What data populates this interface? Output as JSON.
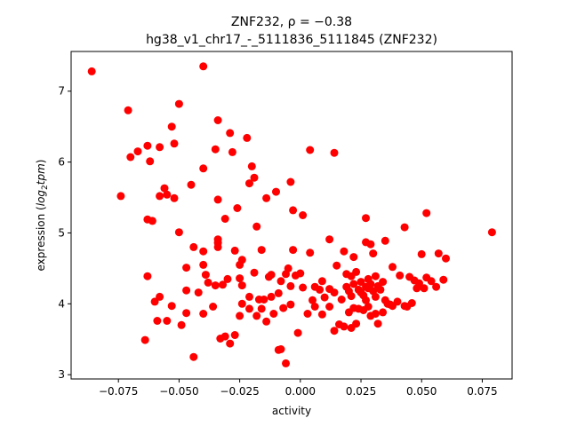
{
  "chart_data": {
    "type": "scatter",
    "title_line1": "ZNF232, ρ = −0.38",
    "title_line2": "hg38_v1_chr17_-_5111836_5111845 (ZNF232)",
    "xlabel": "activity",
    "ylabel_prefix": "expression (",
    "ylabel_math": "log",
    "ylabel_sub": "2",
    "ylabel_math2": "tpm",
    "ylabel_suffix": ")",
    "xlim": [
      -0.0945,
      0.0873
    ],
    "ylim": [
      2.94,
      7.56
    ],
    "grid": false,
    "point_color": "#ff0000",
    "x_ticks": [
      -0.075,
      -0.05,
      -0.025,
      0.0,
      0.025,
      0.05,
      0.075
    ],
    "x_tick_labels": [
      "−0.075",
      "−0.050",
      "−0.025",
      "0.000",
      "0.025",
      "0.050",
      "0.075"
    ],
    "y_ticks": [
      3,
      4,
      5,
      6,
      7
    ],
    "y_tick_labels": [
      "3",
      "4",
      "5",
      "6",
      "7"
    ],
    "points": [
      [
        -0.086,
        7.28
      ],
      [
        -0.04,
        7.35
      ],
      [
        -0.071,
        6.73
      ],
      [
        -0.05,
        6.82
      ],
      [
        -0.034,
        6.59
      ],
      [
        -0.053,
        6.5
      ],
      [
        -0.029,
        6.41
      ],
      [
        -0.022,
        6.34
      ],
      [
        -0.07,
        6.07
      ],
      [
        -0.067,
        6.15
      ],
      [
        -0.063,
        6.23
      ],
      [
        -0.058,
        6.21
      ],
      [
        -0.052,
        6.26
      ],
      [
        -0.062,
        6.01
      ],
      [
        -0.035,
        6.18
      ],
      [
        -0.028,
        6.14
      ],
      [
        0.004,
        6.17
      ],
      [
        0.014,
        6.13
      ],
      [
        -0.04,
        5.91
      ],
      [
        -0.02,
        5.94
      ],
      [
        -0.019,
        5.78
      ],
      [
        -0.074,
        5.52
      ],
      [
        -0.058,
        5.52
      ],
      [
        -0.056,
        5.63
      ],
      [
        -0.052,
        5.49
      ],
      [
        -0.045,
        5.68
      ],
      [
        -0.021,
        5.7
      ],
      [
        -0.014,
        5.49
      ],
      [
        -0.01,
        5.58
      ],
      [
        -0.004,
        5.72
      ],
      [
        -0.055,
        5.54
      ],
      [
        -0.034,
        5.47
      ],
      [
        -0.063,
        5.19
      ],
      [
        -0.061,
        5.17
      ],
      [
        -0.05,
        5.01
      ],
      [
        -0.031,
        5.2
      ],
      [
        -0.026,
        5.35
      ],
      [
        -0.018,
        5.09
      ],
      [
        -0.003,
        5.32
      ],
      [
        0.001,
        5.25
      ],
      [
        0.027,
        5.21
      ],
      [
        0.052,
        5.28
      ],
      [
        0.079,
        5.01
      ],
      [
        -0.044,
        4.8
      ],
      [
        -0.04,
        4.74
      ],
      [
        -0.034,
        4.86
      ],
      [
        -0.034,
        4.91
      ],
      [
        -0.034,
        4.8
      ],
      [
        -0.027,
        4.75
      ],
      [
        -0.016,
        4.76
      ],
      [
        -0.003,
        4.76
      ],
      [
        0.004,
        4.72
      ],
      [
        0.012,
        4.91
      ],
      [
        0.018,
        4.74
      ],
      [
        0.022,
        4.66
      ],
      [
        0.027,
        4.87
      ],
      [
        0.029,
        4.84
      ],
      [
        0.03,
        4.71
      ],
      [
        0.035,
        4.89
      ],
      [
        0.043,
        5.08
      ],
      [
        0.05,
        4.7
      ],
      [
        0.057,
        4.71
      ],
      [
        0.06,
        4.64
      ],
      [
        -0.04,
        4.55
      ],
      [
        -0.047,
        4.51
      ],
      [
        -0.063,
        4.39
      ],
      [
        -0.039,
        4.41
      ],
      [
        -0.025,
        4.55
      ],
      [
        -0.024,
        4.62
      ],
      [
        -0.019,
        4.44
      ],
      [
        -0.013,
        4.38
      ],
      [
        -0.012,
        4.41
      ],
      [
        -0.006,
        4.42
      ],
      [
        -0.005,
        4.5
      ],
      [
        0.0,
        4.43
      ],
      [
        0.006,
        4.24
      ],
      [
        0.009,
        4.32
      ],
      [
        0.012,
        4.21
      ],
      [
        0.015,
        4.54
      ],
      [
        0.019,
        4.42
      ],
      [
        0.021,
        4.39
      ],
      [
        0.023,
        4.45
      ],
      [
        0.025,
        4.31
      ],
      [
        0.028,
        4.35
      ],
      [
        0.031,
        4.39
      ],
      [
        0.034,
        4.31
      ],
      [
        0.038,
        4.52
      ],
      [
        0.041,
        4.4
      ],
      [
        0.045,
        4.38
      ],
      [
        0.047,
        4.33
      ],
      [
        0.049,
        4.29
      ],
      [
        0.052,
        4.37
      ],
      [
        0.054,
        4.32
      ],
      [
        0.056,
        4.24
      ],
      [
        0.059,
        4.34
      ],
      [
        -0.06,
        4.03
      ],
      [
        -0.058,
        4.1
      ],
      [
        -0.053,
        3.97
      ],
      [
        -0.047,
        4.19
      ],
      [
        -0.042,
        4.16
      ],
      [
        -0.038,
        4.3
      ],
      [
        -0.035,
        4.26
      ],
      [
        -0.032,
        4.27
      ],
      [
        -0.03,
        4.35
      ],
      [
        -0.025,
        4.36
      ],
      [
        -0.024,
        4.26
      ],
      [
        -0.021,
        4.1
      ],
      [
        -0.017,
        4.06
      ],
      [
        -0.015,
        4.06
      ],
      [
        -0.012,
        4.1
      ],
      [
        -0.009,
        4.15
      ],
      [
        -0.008,
        4.32
      ],
      [
        -0.004,
        4.25
      ],
      [
        -0.002,
        4.4
      ],
      [
        0.001,
        4.23
      ],
      [
        0.005,
        4.05
      ],
      [
        0.008,
        4.2
      ],
      [
        0.01,
        4.09
      ],
      [
        0.014,
        4.16
      ],
      [
        0.017,
        4.06
      ],
      [
        0.019,
        4.24
      ],
      [
        0.02,
        4.18
      ],
      [
        0.021,
        4.11
      ],
      [
        0.022,
        4.28
      ],
      [
        0.024,
        4.2
      ],
      [
        0.025,
        4.16
      ],
      [
        0.026,
        4.12
      ],
      [
        0.027,
        4.24
      ],
      [
        0.028,
        4.22
      ],
      [
        0.029,
        4.28
      ],
      [
        0.03,
        4.18
      ],
      [
        0.031,
        4.1
      ],
      [
        0.032,
        4.25
      ],
      [
        0.033,
        4.2
      ],
      [
        0.035,
        4.05
      ],
      [
        0.037,
        3.99
      ],
      [
        0.04,
        4.03
      ],
      [
        0.043,
        3.97
      ],
      [
        0.046,
        4.01
      ],
      [
        0.048,
        4.22
      ],
      [
        0.051,
        4.22
      ],
      [
        -0.064,
        3.49
      ],
      [
        -0.059,
        3.76
      ],
      [
        -0.055,
        3.76
      ],
      [
        -0.049,
        3.7
      ],
      [
        -0.047,
        3.87
      ],
      [
        -0.044,
        3.25
      ],
      [
        -0.04,
        3.86
      ],
      [
        -0.036,
        3.96
      ],
      [
        -0.033,
        3.51
      ],
      [
        -0.031,
        3.54
      ],
      [
        -0.029,
        3.44
      ],
      [
        -0.027,
        3.56
      ],
      [
        -0.025,
        3.83
      ],
      [
        -0.024,
        4.0
      ],
      [
        -0.021,
        3.93
      ],
      [
        -0.018,
        3.83
      ],
      [
        -0.016,
        3.93
      ],
      [
        -0.014,
        3.75
      ],
      [
        -0.011,
        3.86
      ],
      [
        -0.009,
        3.35
      ],
      [
        -0.008,
        3.36
      ],
      [
        -0.007,
        3.94
      ],
      [
        -0.006,
        3.16
      ],
      [
        -0.004,
        3.99
      ],
      [
        -0.001,
        3.59
      ],
      [
        0.003,
        3.86
      ],
      [
        0.006,
        3.96
      ],
      [
        0.009,
        3.85
      ],
      [
        0.012,
        3.96
      ],
      [
        0.014,
        3.62
      ],
      [
        0.016,
        3.71
      ],
      [
        0.018,
        3.68
      ],
      [
        0.02,
        3.88
      ],
      [
        0.021,
        3.66
      ],
      [
        0.022,
        3.94
      ],
      [
        0.023,
        3.72
      ],
      [
        0.024,
        3.93
      ],
      [
        0.026,
        3.91
      ],
      [
        0.027,
        4.05
      ],
      [
        0.028,
        3.96
      ],
      [
        0.029,
        3.83
      ],
      [
        0.031,
        3.86
      ],
      [
        0.032,
        3.72
      ],
      [
        0.034,
        3.88
      ],
      [
        0.036,
        4.0
      ],
      [
        0.038,
        3.97
      ],
      [
        0.044,
        3.96
      ]
    ]
  }
}
